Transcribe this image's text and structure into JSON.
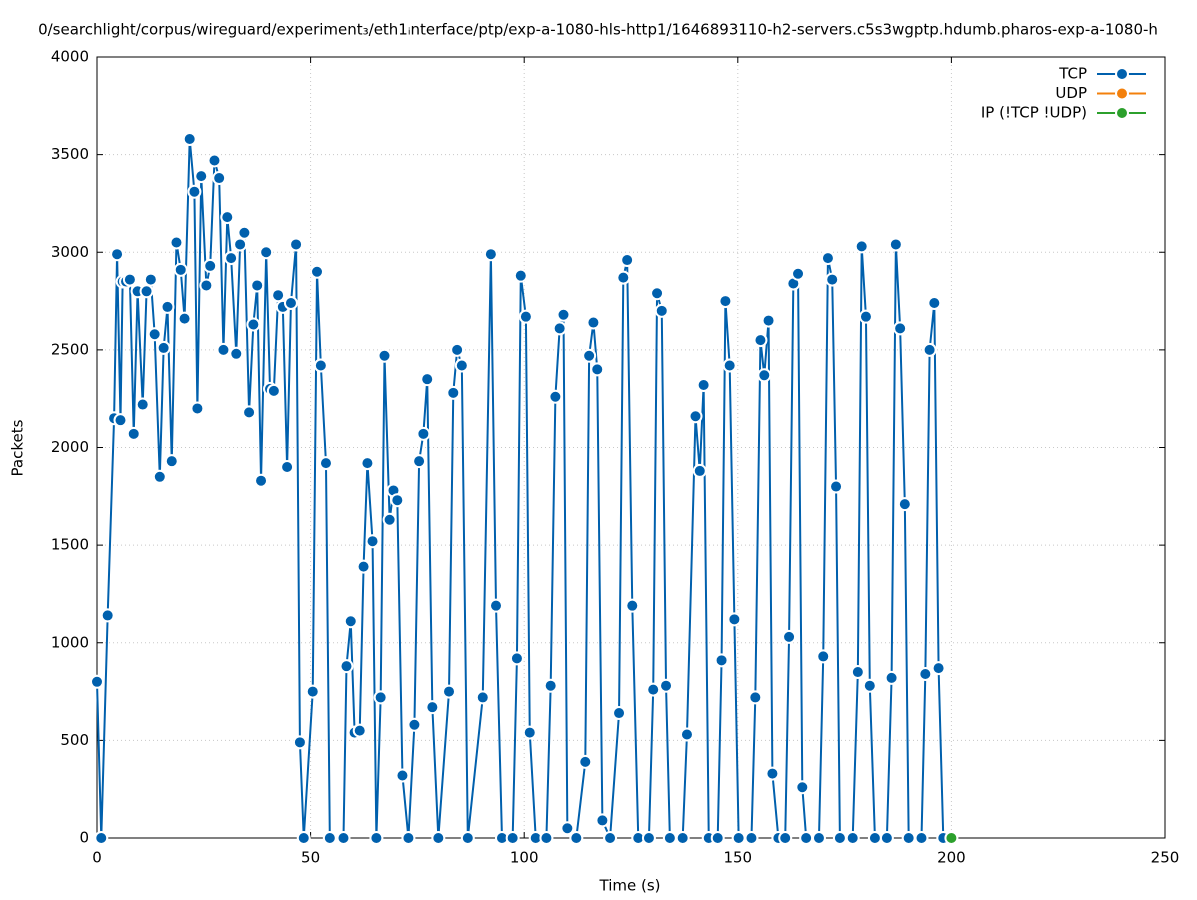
{
  "chart_data": {
    "type": "line",
    "title": "0/searchlight/corpus/wireguard/experiment₃/eth1ᵢnterface/ptp/exp-a-1080-hls-http1/1646893110-h2-servers.c5s3wgptp.hdumb.pharos-exp-a-1080-h",
    "xlabel": "Time (s)",
    "ylabel": "Packets",
    "xlim": [
      0,
      250
    ],
    "xticks": [
      0,
      50,
      100,
      150,
      200,
      250
    ],
    "ylim": [
      0,
      4000
    ],
    "yticks": [
      0,
      500,
      1000,
      1500,
      2000,
      2500,
      3000,
      3500,
      4000
    ],
    "grid": true,
    "legend": "top-right",
    "series": [
      {
        "name": "TCP",
        "color": "#0060ad",
        "x": [
          0,
          1,
          2.5,
          4,
          4.7,
          5.5,
          6,
          6.8,
          7.7,
          8.6,
          9.5,
          10.7,
          11.6,
          12.6,
          13.5,
          14.7,
          15.6,
          16.5,
          17.5,
          18.6,
          19.6,
          20.5,
          21.7,
          22.8,
          23.5,
          24.4,
          25.6,
          26.5,
          27.5,
          28.6,
          29.6,
          30.5,
          31.4,
          32.6,
          33.5,
          34.5,
          35.6,
          36.6,
          37.5,
          38.4,
          39.6,
          40.5,
          41.4,
          42.4,
          43.5,
          44.5,
          45.4,
          46.6,
          47.5,
          48.4,
          50.5,
          51.5,
          52.4,
          53.6,
          54.5,
          57.7,
          58.4,
          59.4,
          60.3,
          61.5,
          62.4,
          63.3,
          64.5,
          65.4,
          66.4,
          67.3,
          68.5,
          69.4,
          70.3,
          71.5,
          72.9,
          74.3,
          75.4,
          76.4,
          77.3,
          78.5,
          79.9,
          82.4,
          83.4,
          84.3,
          85.4,
          86.8,
          90.3,
          92.2,
          93.4,
          94.8,
          97.3,
          98.3,
          99.2,
          100.4,
          101.3,
          102.7,
          105.2,
          106.2,
          107.3,
          108.3,
          109.2,
          110.1,
          112.2,
          114.3,
          115.2,
          116.2,
          117.1,
          118.3,
          120.1,
          122.2,
          123.2,
          124.1,
          125.3,
          126.7,
          129.2,
          130.2,
          131.1,
          132.2,
          133.2,
          134.1,
          137.1,
          138.1,
          140.1,
          141.1,
          142,
          143.2,
          145.3,
          146.2,
          147.1,
          148.1,
          149.2,
          150.2,
          153.2,
          154.1,
          155.3,
          156.2,
          157.2,
          158.1,
          159.5,
          161.1,
          162,
          163,
          164.1,
          165.1,
          166,
          169,
          170,
          171.1,
          172.1,
          173,
          173.9,
          176.9,
          178.1,
          179,
          180,
          180.9,
          182.1,
          184.9,
          186,
          187,
          188,
          189.1,
          190,
          193,
          193.9,
          194.9,
          196,
          197,
          198.1
        ],
        "values": [
          800,
          0,
          1140,
          2150,
          2990,
          2140,
          2850,
          2850,
          2860,
          2070,
          2800,
          2220,
          2800,
          2860,
          2580,
          1850,
          2510,
          2720,
          1930,
          3050,
          2910,
          2660,
          3580,
          3310,
          2200,
          3390,
          2830,
          2930,
          3470,
          3380,
          2500,
          3180,
          2970,
          2480,
          3040,
          3100,
          2180,
          2630,
          2830,
          1830,
          3000,
          2300,
          2290,
          2780,
          2720,
          1900,
          2740,
          3040,
          490,
          0,
          750,
          2900,
          2420,
          1920,
          0,
          0,
          880,
          1110,
          540,
          550,
          1390,
          1920,
          1520,
          0,
          720,
          2470,
          1630,
          1780,
          1730,
          320,
          0,
          580,
          1930,
          2070,
          2350,
          670,
          0,
          750,
          2280,
          2500,
          2420,
          0,
          720,
          2990,
          1190,
          0,
          0,
          920,
          2880,
          2670,
          540,
          0,
          0,
          780,
          2260,
          2610,
          2680,
          50,
          0,
          390,
          2470,
          2640,
          2400,
          90,
          0,
          640,
          2870,
          2960,
          1190,
          0,
          0,
          760,
          2790,
          2700,
          780,
          0,
          0,
          530,
          2160,
          1880,
          2320,
          0,
          0,
          910,
          2750,
          2420,
          1120,
          0,
          0,
          720,
          2550,
          2370,
          2650,
          330,
          0,
          0,
          1030,
          2840,
          2890,
          260,
          0,
          0,
          930,
          2970,
          2860,
          1800,
          0,
          0,
          850,
          3030,
          2670,
          780,
          0,
          0,
          820,
          3040,
          2610,
          1710,
          0,
          0,
          840,
          2500,
          2740,
          870,
          0
        ]
      },
      {
        "name": "UDP",
        "color": "#f3800c",
        "x": [],
        "values": []
      },
      {
        "name": "IP (!TCP  !UDP)",
        "color": "#2ca02c",
        "x": [
          200
        ],
        "values": [
          0
        ]
      }
    ]
  }
}
